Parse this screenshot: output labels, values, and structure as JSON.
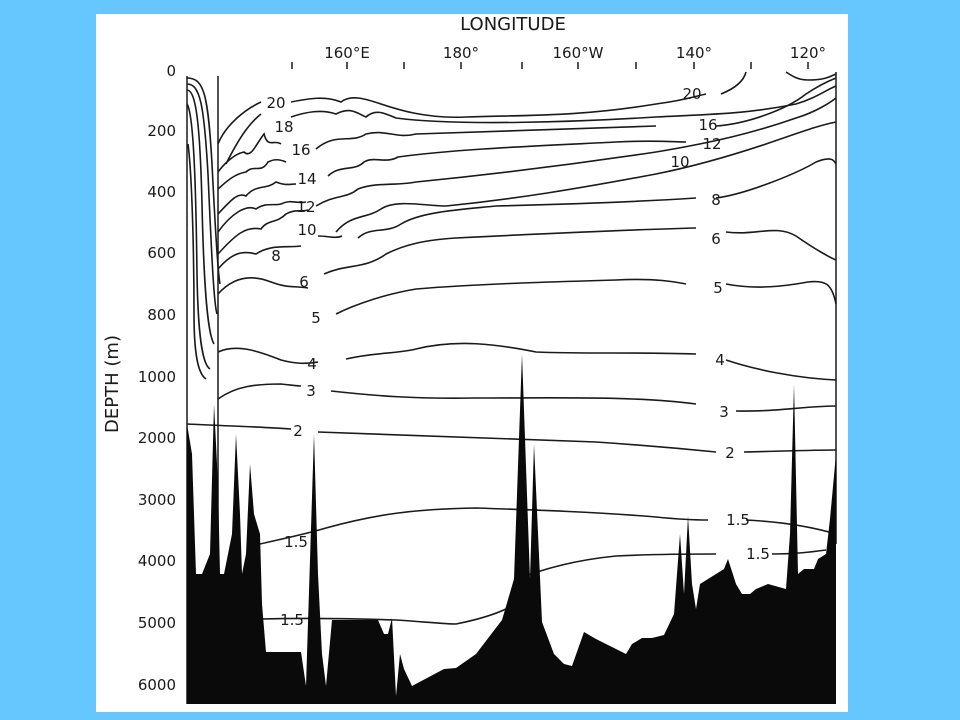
{
  "chart_data": {
    "type": "contour",
    "xlabel": "LONGITUDE",
    "ylabel": "DEPTH (m)",
    "x_ticks": [
      "160°E",
      "180°",
      "160°W",
      "140°",
      "120°"
    ],
    "y_ticks": [
      "0",
      "200",
      "400",
      "600",
      "800",
      "1000",
      "2000",
      "3000",
      "4000",
      "5000",
      "6000"
    ],
    "isotherms": [
      {
        "value": 20,
        "labels": [
          "20",
          "20"
        ]
      },
      {
        "value": 18,
        "labels": [
          "18"
        ]
      },
      {
        "value": 16,
        "labels": [
          "16",
          "16"
        ]
      },
      {
        "value": 14,
        "labels": [
          "14"
        ]
      },
      {
        "value": 12,
        "labels": [
          "12",
          "12"
        ]
      },
      {
        "value": 10,
        "labels": [
          "10",
          "10"
        ]
      },
      {
        "value": 8,
        "labels": [
          "8",
          "8"
        ]
      },
      {
        "value": 6,
        "labels": [
          "6",
          "6"
        ]
      },
      {
        "value": 5,
        "labels": [
          "5",
          "5"
        ]
      },
      {
        "value": 4,
        "labels": [
          "4",
          "4"
        ]
      },
      {
        "value": 3,
        "labels": [
          "3",
          "3"
        ]
      },
      {
        "value": 2,
        "labels": [
          "2",
          "2"
        ]
      },
      {
        "value": 1.5,
        "labels": [
          "1.5",
          "1.5",
          "1.5",
          "1.5"
        ]
      }
    ]
  }
}
